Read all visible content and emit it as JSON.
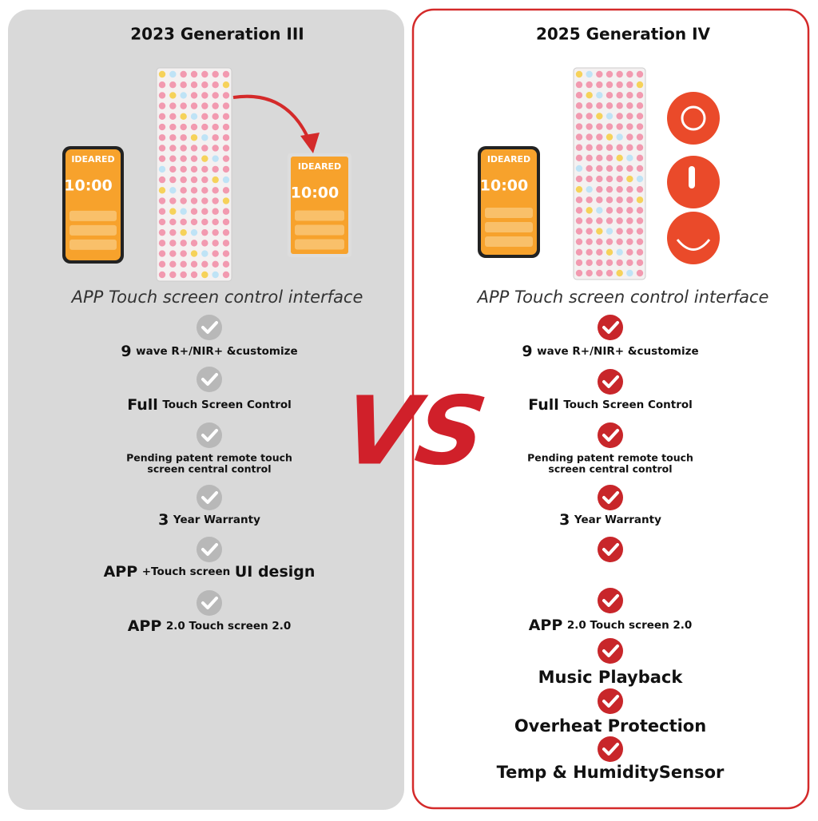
{
  "left": {
    "title": "2023 Generation III",
    "subtitle": "APP Touch screen control interface",
    "phone": {
      "brand": "IDEARED",
      "time": "10:00"
    },
    "tablet": {
      "brand": "IDEARED",
      "time": "10:00"
    },
    "features": [
      {
        "lead": "9",
        "text": "wave R+/NIR+ &customize"
      },
      {
        "lead": "Full",
        "text": "Touch Screen Control"
      },
      {
        "lines": [
          "Pending patent remote touch",
          "screen central control"
        ]
      },
      {
        "lead": "3",
        "text": "Year Warranty"
      },
      {
        "lead": "APP",
        "text": "+Touch screen",
        "tail": "UI design"
      },
      {
        "lead": "APP",
        "text": "2.0 Touch screen 2.0"
      }
    ]
  },
  "vs": "VS",
  "right": {
    "title": "2025 Generation IV",
    "subtitle": "APP Touch screen control interface",
    "phone": {
      "brand": "IDEARED",
      "time": "10:00"
    },
    "features": [
      {
        "lead": "9",
        "text": "wave R+/NIR+ &customize"
      },
      {
        "lead": "Full",
        "text": "Touch Screen Control"
      },
      {
        "lines": [
          "Pending patent remote touch",
          "screen central control"
        ]
      },
      {
        "lead": "3",
        "text": "Year Warranty"
      },
      {
        "check": true
      },
      {
        "lead": "APP",
        "text": "2.0 Touch screen 2.0"
      },
      {
        "lead": "Music Playback"
      },
      {
        "lead": "Overheat Protection"
      },
      {
        "lead": "Temp & HumiditySensor"
      }
    ]
  }
}
